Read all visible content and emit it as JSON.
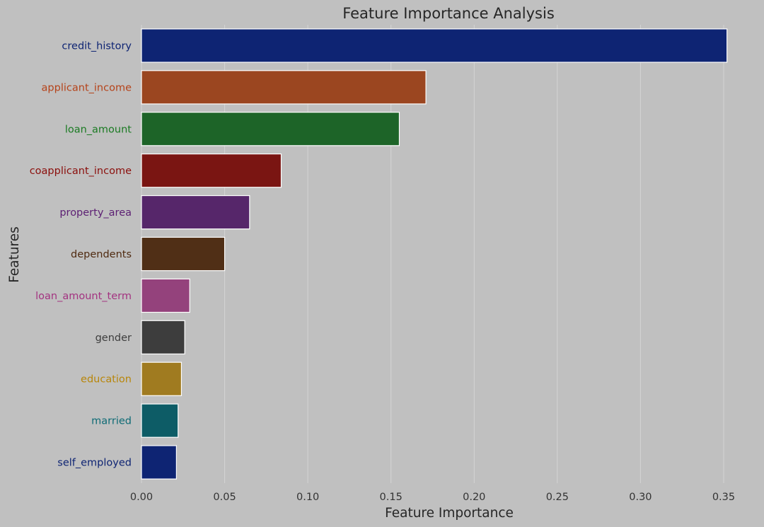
{
  "chart_data": {
    "type": "bar",
    "orientation": "horizontal",
    "title": "Feature Importance Analysis",
    "xlabel": "Feature Importance",
    "ylabel": "Features",
    "xlim": [
      0,
      0.37
    ],
    "xticks": [
      0.0,
      0.05,
      0.1,
      0.15,
      0.2,
      0.25,
      0.3,
      0.35
    ],
    "xtick_labels": [
      "0.00",
      "0.05",
      "0.10",
      "0.15",
      "0.20",
      "0.25",
      "0.30",
      "0.35"
    ],
    "grid": true,
    "categories": [
      "credit_history",
      "applicant_income",
      "loan_amount",
      "coapplicant_income",
      "property_area",
      "dependents",
      "loan_amount_term",
      "gender",
      "education",
      "married",
      "self_employed"
    ],
    "values": [
      0.352,
      0.171,
      0.155,
      0.084,
      0.065,
      0.05,
      0.029,
      0.026,
      0.024,
      0.022,
      0.021
    ],
    "colors": [
      "#0e2473",
      "#9b4620",
      "#1d6428",
      "#7a1512",
      "#56266a",
      "#502f16",
      "#94427c",
      "#3d3d3d",
      "#a07b20",
      "#0d5c66",
      "#0e2473"
    ],
    "label_colors": [
      "#0e2473",
      "#b5431a",
      "#1a7a22",
      "#8b0f0c",
      "#5c1f73",
      "#4f2a10",
      "#a33380",
      "#3d3d3d",
      "#b8860b",
      "#0e6b75",
      "#0e2473"
    ]
  }
}
